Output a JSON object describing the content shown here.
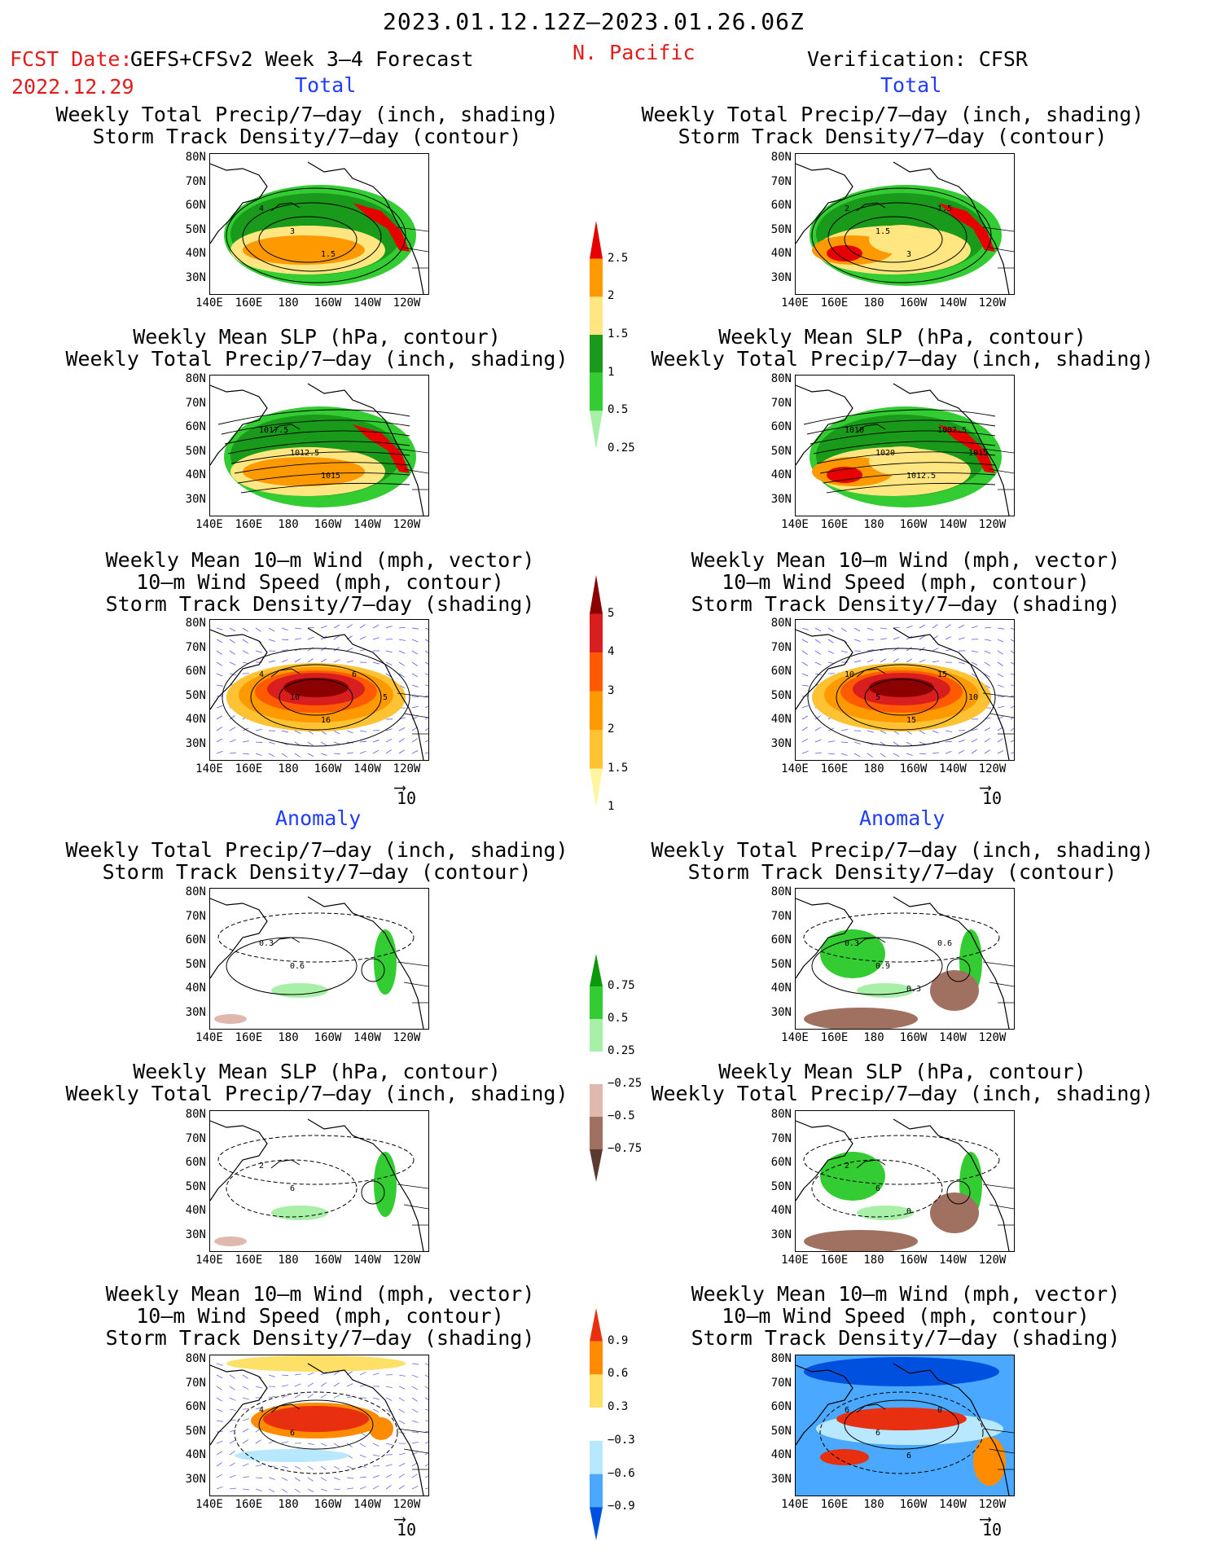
{
  "header": {
    "period": "2023.01.12.12Z–2023.01.26.06Z",
    "fcst_date_label": "FCST Date:",
    "forecast_name": "GEFS+CFSv2 Week 3–4 Forecast",
    "fcst_date": "2022.12.29",
    "region": "N. Pacific",
    "verification": "Verification: CFSR"
  },
  "sections": {
    "total": "Total",
    "anomaly": "Anomaly"
  },
  "panel_titles": {
    "precip_track": [
      "Weekly Total Precip/7–day (inch, shading)",
      "Storm Track Density/7–day (contour)"
    ],
    "slp_precip": [
      "Weekly Mean SLP (hPa, contour)",
      "Weekly Total Precip/7–day (inch, shading)"
    ],
    "wind_track": [
      "Weekly Mean 10–m Wind (mph, vector)",
      "10–m Wind Speed (mph, contour)",
      "Storm Track Density/7–day (shading)"
    ]
  },
  "axes": {
    "lat_labels": [
      "80N",
      "70N",
      "60N",
      "50N",
      "40N",
      "30N"
    ],
    "lon_labels": [
      "140E",
      "160E",
      "180",
      "160W",
      "140W",
      "120W"
    ]
  },
  "colorbars": {
    "precip_total": {
      "labels": [
        "2.5",
        "2",
        "1.5",
        "1",
        "0.5",
        "0.25"
      ],
      "colors": [
        "#e60000",
        "#ff9900",
        "#ffe680",
        "#1a9a1a",
        "#33cc33",
        "#a8f0a8"
      ]
    },
    "track_total": {
      "labels": [
        "5",
        "4",
        "3",
        "2",
        "1.5",
        "1"
      ],
      "colors": [
        "#8b0000",
        "#d81e1e",
        "#ff5a00",
        "#ff9900",
        "#ffc233",
        "#fff5a0"
      ]
    },
    "precip_anom": {
      "labels": [
        "0.75",
        "0.5",
        "0.25",
        "−0.25",
        "−0.5",
        "−0.75"
      ],
      "colors": [
        "#0a9a0a",
        "#33cc33",
        "#a8f0a8",
        "#ffffff",
        "#e0b8ae",
        "#a07060",
        "#5a3a30"
      ]
    },
    "track_anom": {
      "labels": [
        "0.9",
        "0.6",
        "0.3",
        "−0.3",
        "−0.6",
        "−0.9"
      ],
      "colors": [
        "#e83010",
        "#ff8c00",
        "#ffe066",
        "#ffffff",
        "#b8e8ff",
        "#4aa8ff",
        "#0050e0"
      ]
    }
  },
  "panel_labels": {
    "fc_precip_track": [
      "4",
      "3",
      "1.5"
    ],
    "fc_slp": [
      "1017.5",
      "1012.5",
      "1015"
    ],
    "fc_wind": [
      "4",
      "10",
      "16",
      "6",
      "5"
    ],
    "ob_precip_track": [
      "2",
      "1.5",
      "3",
      "1.5"
    ],
    "ob_slp": [
      "1010",
      "1020",
      "1012.5",
      "1007.5",
      "1015"
    ],
    "ob_wind": [
      "10",
      "5",
      "15",
      "15",
      "10"
    ],
    "fa_precip_track": [
      "0.3",
      "0.6"
    ],
    "fa_slp": [
      "2",
      "6"
    ],
    "fa_wind": [
      "4",
      "6"
    ],
    "oa_precip_track": [
      "0.3",
      "0.9",
      "0.3",
      "0.6"
    ],
    "oa_slp": [
      "2",
      "6",
      "0"
    ],
    "oa_wind": [
      "6",
      "6",
      "6",
      "0"
    ]
  },
  "vector_ref": "10"
}
